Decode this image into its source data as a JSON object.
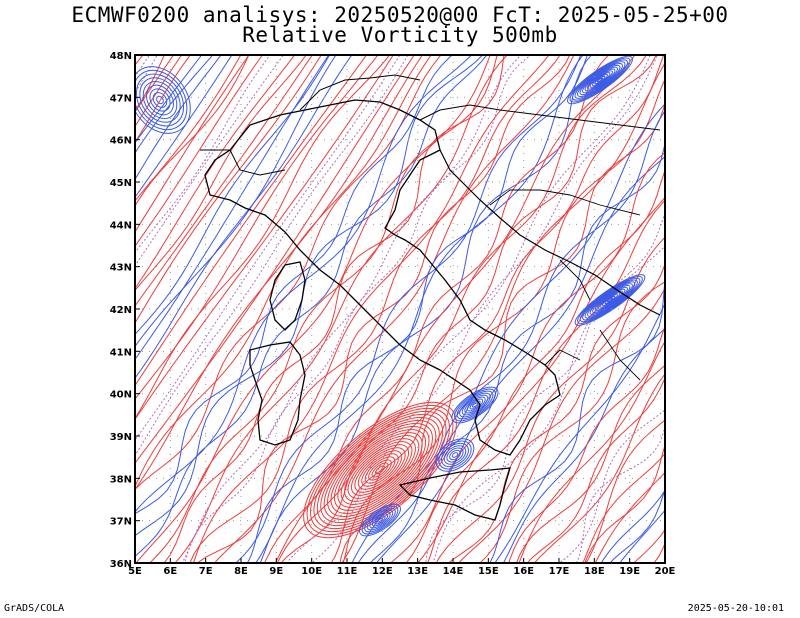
{
  "title": {
    "line1": "ECMWF0200 analisys: 20250520@00 FcT: 2025-05-25+00",
    "line2": "Relative Vorticity 500mb"
  },
  "map": {
    "lon_range": [
      5,
      20
    ],
    "lat_range": [
      36,
      48
    ],
    "lon_labels": [
      "5E",
      "6E",
      "7E",
      "8E",
      "9E",
      "10E",
      "11E",
      "12E",
      "13E",
      "14E",
      "15E",
      "16E",
      "17E",
      "18E",
      "19E",
      "20E"
    ],
    "lat_labels": [
      "36N",
      "37N",
      "38N",
      "39N",
      "40N",
      "41N",
      "42N",
      "43N",
      "44N",
      "45N",
      "46N",
      "47N",
      "48N"
    ],
    "grid": "dotted",
    "colors": {
      "positive_contours": "#f03c3c",
      "negative_contours": "#3c5ae6",
      "zero_contour": "#b46eb4",
      "borders": "#000000"
    }
  },
  "footer": {
    "left": "GrADS/COLA",
    "right": "2025-05-20-10:01"
  }
}
